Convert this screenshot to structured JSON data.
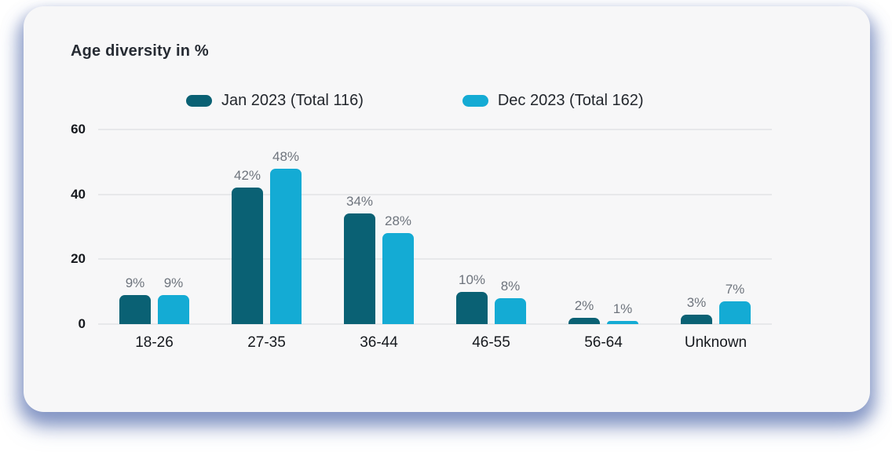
{
  "card": {
    "title": "Age diversity in %"
  },
  "colors": {
    "card_background": "#f7f7f8",
    "series_jan": "#0a6174",
    "series_dec": "#14abd4",
    "gridline": "#e7e8ea",
    "value_label": "#6e747d",
    "axis_text": "#16191e",
    "shadow": "#7286bc"
  },
  "chart_data": {
    "type": "bar",
    "title": "Age diversity in %",
    "categories": [
      "18-26",
      "27-35",
      "36-44",
      "46-55",
      "56-64",
      "Unknown"
    ],
    "series": [
      {
        "name": "Jan 2023 (Total 116)",
        "color": "#0a6174",
        "values": [
          9,
          42,
          34,
          10,
          2,
          3
        ]
      },
      {
        "name": "Dec 2023 (Total 162)",
        "color": "#14abd4",
        "values": [
          9,
          48,
          28,
          8,
          1,
          7
        ]
      }
    ],
    "value_suffix": "%",
    "yticks": [
      0,
      20,
      40,
      60
    ],
    "ylim": [
      0,
      60
    ],
    "xlabel": "",
    "ylabel": "",
    "grid": true,
    "legend_position": "top"
  }
}
